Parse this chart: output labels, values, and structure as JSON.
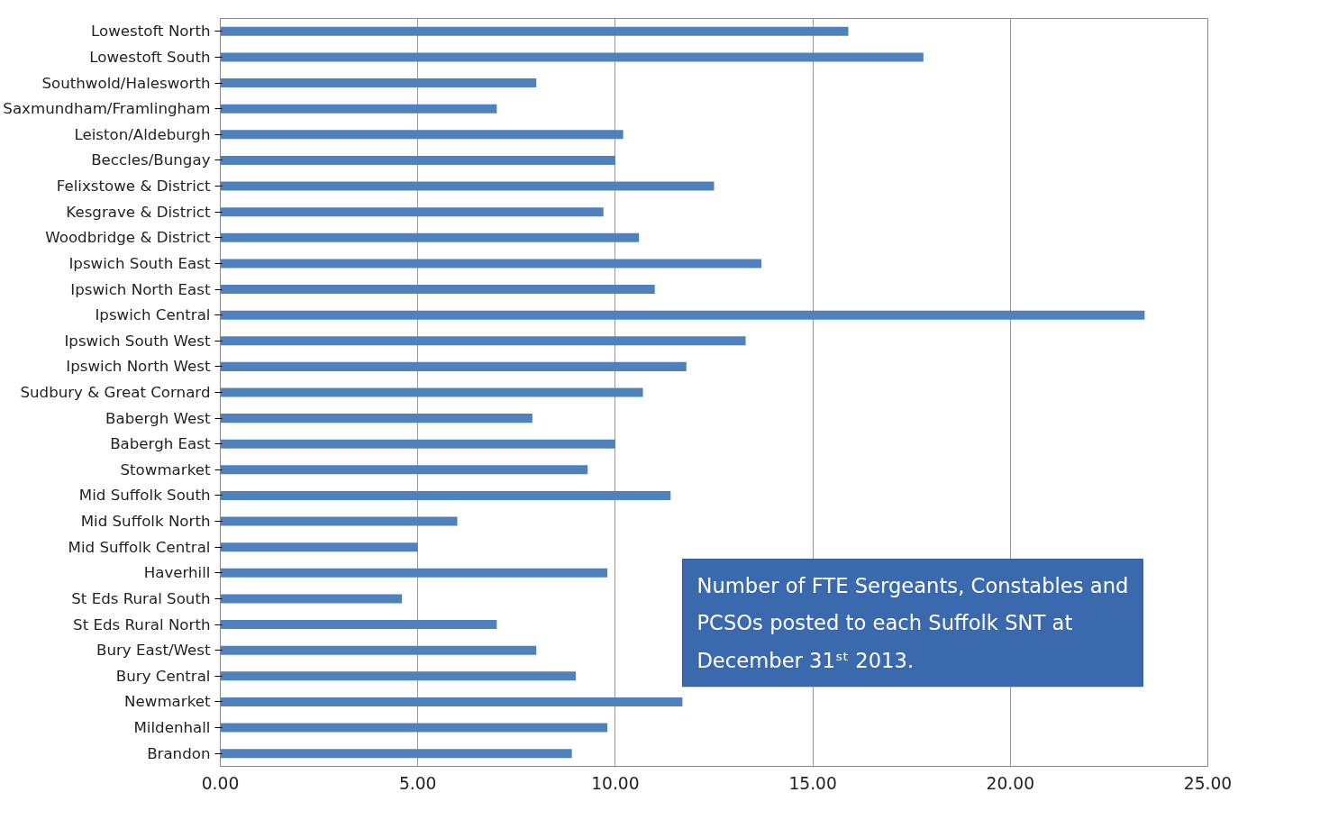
{
  "chart_data": {
    "type": "bar",
    "orientation": "horizontal",
    "categories": [
      "Lowestoft North",
      "Lowestoft South",
      "Southwold/Halesworth",
      "Saxmundham/Framlingham",
      "Leiston/Aldeburgh",
      "Beccles/Bungay",
      "Felixstowe & District",
      "Kesgrave & District",
      "Woodbridge & District",
      "Ipswich South East",
      "Ipswich North East",
      "Ipswich Central",
      "Ipswich South West",
      "Ipswich North West",
      "Sudbury & Great Cornard",
      "Babergh West",
      "Babergh East",
      "Stowmarket",
      "Mid Suffolk South",
      "Mid Suffolk North",
      "Mid Suffolk Central",
      "Haverhill",
      "St Eds Rural South",
      "St Eds Rural North",
      "Bury East/West",
      "Bury Central",
      "Newmarket",
      "Mildenhall",
      "Brandon"
    ],
    "values": [
      15.9,
      17.8,
      8.0,
      7.0,
      10.2,
      10.0,
      12.5,
      9.7,
      10.6,
      13.7,
      11.0,
      23.4,
      13.3,
      11.8,
      10.7,
      7.9,
      10.0,
      9.3,
      11.4,
      6.0,
      5.0,
      9.8,
      4.6,
      7.0,
      8.0,
      9.0,
      11.7,
      9.8,
      8.9
    ],
    "color": "#4f81bd",
    "xlim": [
      0,
      25
    ],
    "xticks": [
      {
        "value": 0,
        "label": "0.00"
      },
      {
        "value": 5,
        "label": "5.00"
      },
      {
        "value": 10,
        "label": "10.00"
      },
      {
        "value": 15,
        "label": "15.00"
      },
      {
        "value": 20,
        "label": "20.00"
      },
      {
        "value": 25,
        "label": "25.00"
      }
    ],
    "grid": "x",
    "annotations": [
      "Number of FTE Sergeants, Constables and PCSOs posted to each Suffolk SNT at December 31ˢᵗ 2013."
    ]
  }
}
